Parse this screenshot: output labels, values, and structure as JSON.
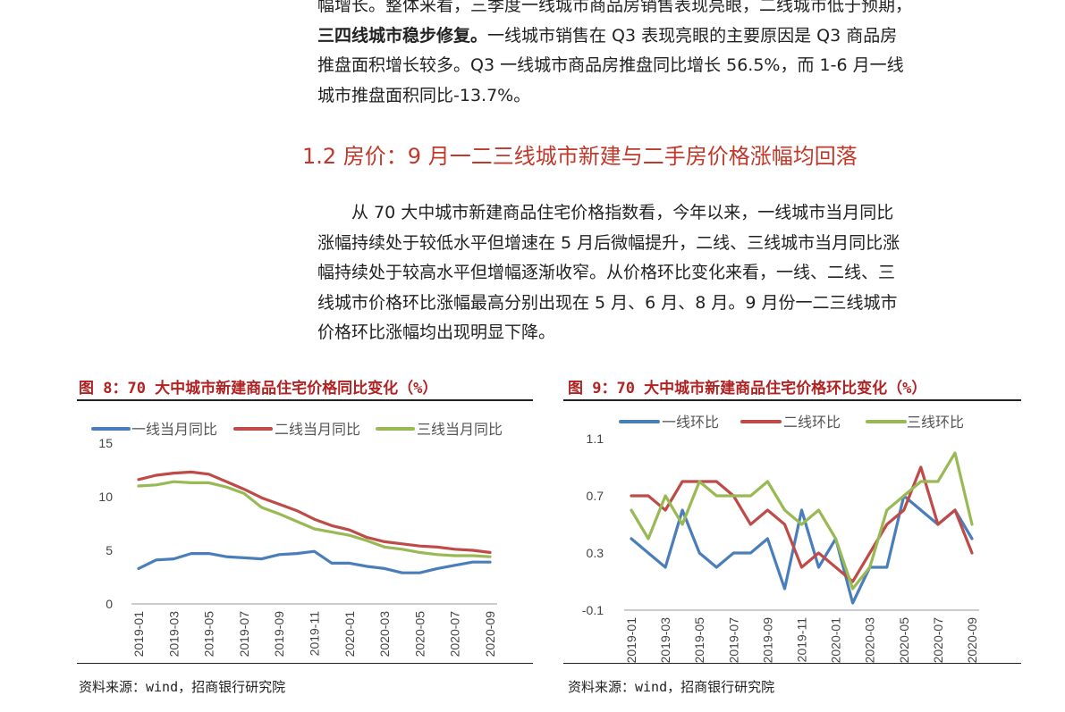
{
  "top_paragraph": {
    "line1": "幅增长。整体来看，三季度一线城市商品房销售表现亮眼，二线城市低于预期，",
    "line2_bold": "三四线城市稳步修复。",
    "line2_rest": "一线城市销售在 Q3 表现亮眼的主要原因是 Q3 商品房",
    "line3": "推盘面积增长较多。Q3 一线城市商品房推盘同比增长 56.5%，而 1-6 月一线",
    "line4": "城市推盘面积同比-13.7%。"
  },
  "section_heading": "1.2 房价：9 月一二三线城市新建与二手房价格涨幅均回落",
  "main_paragraph": {
    "line1": "从 70 大中城市新建商品住宅价格指数看，今年以来，一线城市当月同比",
    "line2": "涨幅持续处于较低水平但增速在 5 月后微幅提升，二线、三线城市当月同比涨",
    "line3": "幅持续处于较高水平但增幅逐渐收窄。从价格环比变化来看，一线、二线、三",
    "line4": "线城市价格环比涨幅最高分别出现在 5 月、6 月、8 月。9 月份一二三线城市",
    "line5": "价格环比涨幅均出现明显下降。"
  },
  "figures": {
    "fig8_title": "图 8：70 大中城市新建商品住宅价格同比变化（%）",
    "fig9_title": "图 9：70 大中城市新建商品住宅价格环比变化（%）",
    "fig8_source": "资料来源：wind，招商银行研究院",
    "fig9_source": "资料来源：wind，招商银行研究院"
  },
  "chart_data": [
    {
      "type": "line",
      "title": "图 8：70 大中城市新建商品住宅价格同比变化（%）",
      "categories": [
        "2019-01",
        "2019-02",
        "2019-03",
        "2019-04",
        "2019-05",
        "2019-06",
        "2019-07",
        "2019-08",
        "2019-09",
        "2019-10",
        "2019-11",
        "2019-12",
        "2020-01",
        "2020-02",
        "2020-03",
        "2020-04",
        "2020-05",
        "2020-06",
        "2020-07",
        "2020-08",
        "2020-09"
      ],
      "tick_labels": [
        "2019-01",
        "2019-03",
        "2019-05",
        "2019-07",
        "2019-09",
        "2019-11",
        "2020-01",
        "2020-03",
        "2020-05",
        "2020-07",
        "2020-09"
      ],
      "ylim": [
        0,
        15
      ],
      "yticks": [
        0,
        5,
        10,
        15
      ],
      "legend_position": "top",
      "series": [
        {
          "name": "一线当月同比",
          "color": "#4a7ebb",
          "values": [
            3.3,
            4.1,
            4.2,
            4.7,
            4.7,
            4.4,
            4.3,
            4.2,
            4.6,
            4.7,
            4.9,
            3.8,
            3.8,
            3.5,
            3.3,
            2.9,
            2.9,
            3.3,
            3.6,
            3.9,
            3.9
          ]
        },
        {
          "name": "二线当月同比",
          "color": "#be4b48",
          "values": [
            11.6,
            12.0,
            12.2,
            12.3,
            12.1,
            11.4,
            10.7,
            9.9,
            9.3,
            8.7,
            7.9,
            7.3,
            6.9,
            6.2,
            5.8,
            5.6,
            5.4,
            5.3,
            5.1,
            5.0,
            4.8
          ]
        },
        {
          "name": "三线当月同比",
          "color": "#98b954",
          "values": [
            11.0,
            11.1,
            11.4,
            11.3,
            11.3,
            10.9,
            10.3,
            9.0,
            8.4,
            7.7,
            7.0,
            6.7,
            6.4,
            5.9,
            5.3,
            5.1,
            4.8,
            4.6,
            4.5,
            4.5,
            4.4
          ]
        }
      ]
    },
    {
      "type": "line",
      "title": "图 9：70 大中城市新建商品住宅价格环比变化（%）",
      "categories": [
        "2019-01",
        "2019-02",
        "2019-03",
        "2019-04",
        "2019-05",
        "2019-06",
        "2019-07",
        "2019-08",
        "2019-09",
        "2019-10",
        "2019-11",
        "2019-12",
        "2020-01",
        "2020-02",
        "2020-03",
        "2020-04",
        "2020-05",
        "2020-06",
        "2020-07",
        "2020-08",
        "2020-09"
      ],
      "tick_labels": [
        "2019-01",
        "2019-03",
        "2019-05",
        "2019-07",
        "2019-09",
        "2019-11",
        "2020-01",
        "2020-03",
        "2020-05",
        "2020-07",
        "2020-09"
      ],
      "ylim": [
        -0.1,
        1.1
      ],
      "yticks": [
        -0.1,
        0.3,
        0.7,
        1.1
      ],
      "legend_position": "top",
      "series": [
        {
          "name": "一线环比",
          "color": "#4a7ebb",
          "values": [
            0.4,
            0.3,
            0.2,
            0.6,
            0.3,
            0.2,
            0.3,
            0.3,
            0.4,
            0.05,
            0.6,
            0.2,
            0.4,
            -0.05,
            0.2,
            0.2,
            0.7,
            0.6,
            0.5,
            0.6,
            0.4
          ]
        },
        {
          "name": "二线环比",
          "color": "#be4b48",
          "values": [
            0.7,
            0.7,
            0.6,
            0.8,
            0.8,
            0.8,
            0.7,
            0.5,
            0.6,
            0.5,
            0.2,
            0.3,
            0.2,
            0.1,
            0.3,
            0.5,
            0.6,
            0.9,
            0.5,
            0.6,
            0.3
          ]
        },
        {
          "name": "三线环比",
          "color": "#98b954",
          "values": [
            0.6,
            0.4,
            0.7,
            0.5,
            0.8,
            0.7,
            0.7,
            0.7,
            0.8,
            0.6,
            0.5,
            0.6,
            0.4,
            0.05,
            0.2,
            0.6,
            0.7,
            0.8,
            0.8,
            1.0,
            0.5
          ]
        }
      ]
    }
  ]
}
